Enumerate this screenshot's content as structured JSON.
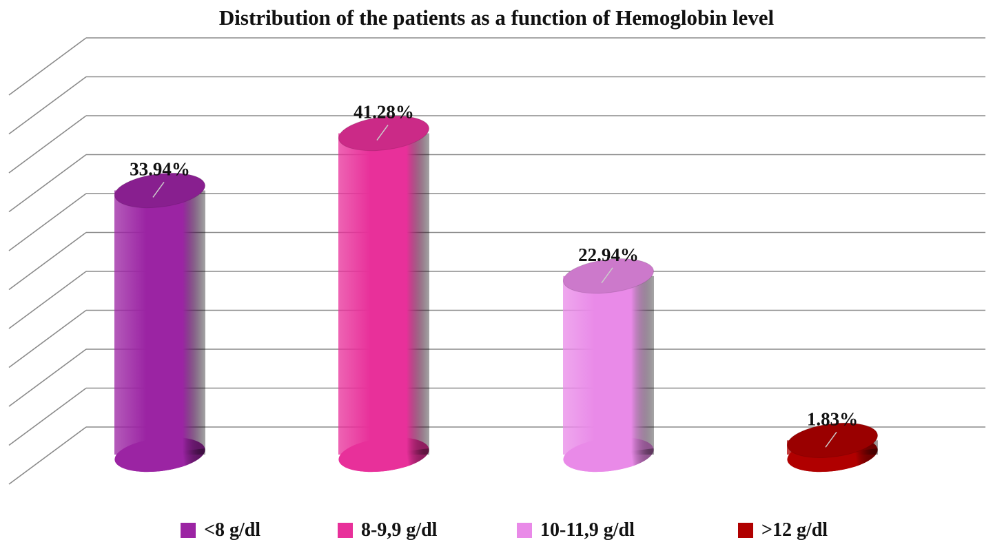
{
  "chart_data": {
    "type": "bar",
    "title": "Distribution of the patients as a function of Hemoglobin level",
    "categories": [
      "<8 g/dl",
      "8-9,9 g/dl",
      "10-11,9 g/dl",
      ">12 g/dl"
    ],
    "values": [
      33.94,
      41.28,
      22.94,
      1.83
    ],
    "data_labels": [
      "33.94%",
      "41.28%",
      "22.94%",
      "1.83%"
    ],
    "colors": [
      "#9b24a3",
      "#e8309a",
      "#e98ae8",
      "#b00000"
    ],
    "ylim": [
      0,
      50
    ],
    "grid": true,
    "legend_position": "bottom",
    "style": "3d-cylinder"
  }
}
